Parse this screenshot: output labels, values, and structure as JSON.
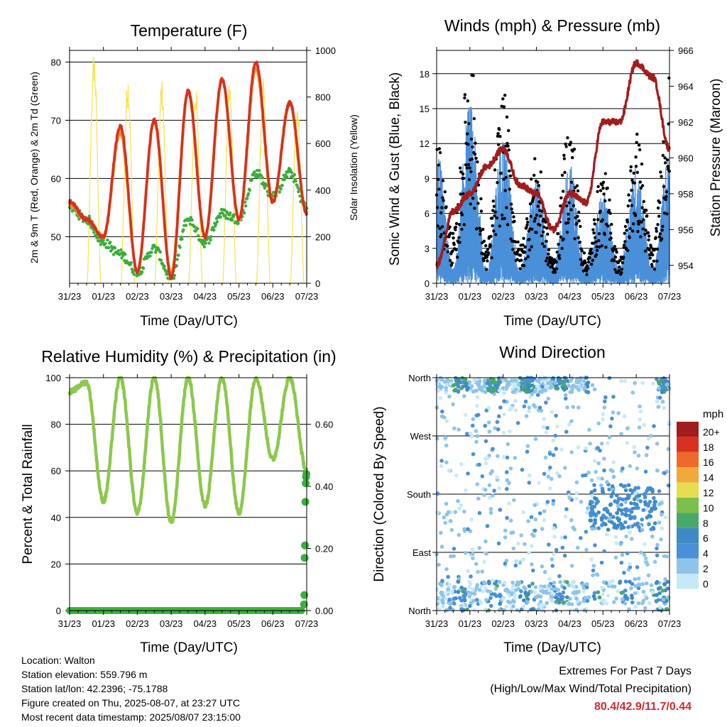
{
  "colors": {
    "red": "#d7301f",
    "orange": "#f28c28",
    "green": "#3aae3a",
    "yellow": "#f5e44c",
    "black": "#000000",
    "blue": "#4a90d9",
    "maroon": "#a11d1d",
    "rh": "#8cc84b",
    "precip": "#3cb03c",
    "extremes_values": "#d42a2a"
  },
  "x_ticks": [
    "31/23",
    "01/23",
    "02/23",
    "03/23",
    "04/23",
    "05/23",
    "06/23",
    "07/23"
  ],
  "panels": {
    "temperature": {
      "title": "Temperature (F)",
      "xlabel": "Time (Day/UTC)",
      "ylabel_left": "2m & 9m T (Red, Orange) & 2m Td (Green)",
      "ylabel_right": "Solar Insolation (Yellow)",
      "left_ticks": [
        "50",
        "60",
        "70",
        "80"
      ],
      "right_ticks": [
        "0",
        "200",
        "400",
        "600",
        "800",
        "1000"
      ]
    },
    "winds": {
      "title": "Winds (mph) & Pressure (mb)",
      "xlabel": "Time (Day/UTC)",
      "ylabel_left": "Sonic Wind & Gust (Blue, Black)",
      "ylabel_right": "Station Pressure (Maroon)",
      "left_ticks": [
        "0",
        "3",
        "6",
        "9",
        "12",
        "15",
        "18"
      ],
      "right_ticks": [
        "954",
        "956",
        "958",
        "960",
        "962",
        "964",
        "966"
      ]
    },
    "humidity": {
      "title": "Relative Humidity (%) & Precipitation (in)",
      "xlabel": "Time (Day/UTC)",
      "ylabel_left": "Percent & Total Rainfall",
      "left_ticks": [
        "0",
        "20",
        "40",
        "60",
        "80",
        "100"
      ],
      "right_ticks": [
        "0.00",
        "0.20",
        "0.40",
        "0.60"
      ]
    },
    "direction": {
      "title": "Wind Direction",
      "xlabel": "Time (Day/UTC)",
      "ylabel_left": "Direction (Colored By Speed)",
      "left_ticks": [
        "North",
        "East",
        "South",
        "West",
        "North"
      ],
      "legend_title": "mph",
      "legend_labels": [
        "0",
        "2",
        "4",
        "6",
        "8",
        "10",
        "12",
        "14",
        "16",
        "18",
        "20+"
      ],
      "legend_colors": [
        "#c6e9f7",
        "#8ec4ea",
        "#4a90d9",
        "#3e8ac4",
        "#48a868",
        "#7cbf4a",
        "#e8dc50",
        "#f2a93b",
        "#ee6a2a",
        "#d7301f",
        "#a11d1d"
      ]
    }
  },
  "info": {
    "location": "Location: Walton",
    "elevation": "Station elevation: 559.796 m",
    "latlon": "Station lat/lon: 42.2396; -75.1788",
    "created": "Figure created on Thu, 2025-08-07, at 23:27 UTC",
    "recent": "Most recent data timestamp: 2025/08/07 23:15:00"
  },
  "extremes": {
    "title": "Extremes For Past 7 Days",
    "subtitle": "(High/Low/Max Wind/Total Precipitation)",
    "values": "80.4/42.9/11.7/0.44"
  },
  "chart_data": [
    {
      "type": "line",
      "title": "Temperature (F)",
      "xlabel": "Time (Day/UTC)",
      "ylabel": "2m & 9m T (Red, Orange) & 2m Td (Green)",
      "y2label": "Solar Insolation (Yellow)",
      "x": [
        0,
        0.5,
        1,
        1.5,
        2,
        2.5,
        3,
        3.5,
        4,
        4.5,
        5,
        5.5,
        6,
        6.5,
        7
      ],
      "ylim": [
        42,
        82
      ],
      "y2lim": [
        0,
        1000
      ],
      "series": [
        {
          "name": "2m T (Red)",
          "values": [
            56,
            53,
            50,
            69,
            44,
            70,
            43,
            75,
            50,
            77,
            53,
            80,
            56,
            73,
            54
          ]
        },
        {
          "name": "9m T (Orange)",
          "values": [
            55.5,
            53,
            50,
            68,
            44,
            70,
            43.5,
            75,
            50,
            77,
            53,
            79,
            56,
            73,
            54
          ]
        },
        {
          "name": "2m Td (Green)",
          "values": [
            55,
            53,
            49,
            47,
            44,
            48,
            43,
            53,
            49,
            54,
            53,
            61,
            57,
            61,
            55
          ]
        },
        {
          "name": "Solar Insolation (Yellow)",
          "values": [
            0,
            0,
            1000,
            0,
            900,
            0,
            880,
            0,
            860,
            0,
            880,
            0,
            880,
            0,
            800
          ]
        }
      ]
    },
    {
      "type": "line",
      "title": "Winds (mph) & Pressure (mb)",
      "xlabel": "Time (Day/UTC)",
      "ylabel": "Sonic Wind & Gust (Blue, Black)",
      "y2label": "Station Pressure (Maroon)",
      "x": [
        0,
        0.5,
        1,
        1.5,
        2,
        2.5,
        3,
        3.5,
        4,
        4.5,
        5,
        5.5,
        6,
        6.5,
        7
      ],
      "ylim": [
        0,
        20
      ],
      "y2lim": [
        953,
        966
      ],
      "series": [
        {
          "name": "Gust (Black) daily peak",
          "values": [
            11,
            4,
            18,
            3,
            15,
            3,
            10,
            2,
            13,
            2,
            9,
            2,
            12,
            3,
            17
          ]
        },
        {
          "name": "Sonic Wind (Blue) daily peak",
          "values": [
            9,
            1,
            12,
            1,
            10,
            1,
            7,
            1,
            8,
            1,
            6,
            1,
            8,
            1,
            9
          ]
        },
        {
          "name": "Station Pressure (Maroon)",
          "values": [
            954,
            957,
            958,
            959.5,
            960.5,
            958.5,
            958,
            956,
            958,
            957.5,
            962,
            962,
            965.3,
            964.5,
            960.5
          ]
        }
      ]
    },
    {
      "type": "line",
      "title": "Relative Humidity (%) & Precipitation (in)",
      "xlabel": "Time (Day/UTC)",
      "ylabel": "Percent & Total Rainfall",
      "x": [
        0,
        0.5,
        1,
        1.5,
        2,
        2.5,
        3,
        3.5,
        4,
        4.5,
        5,
        5.5,
        6,
        6.5,
        7
      ],
      "ylim": [
        0,
        100
      ],
      "y2lim": [
        0,
        0.75
      ],
      "series": [
        {
          "name": "Relative Humidity",
          "values": [
            94,
            98,
            47,
            100,
            42,
            100,
            38,
            100,
            45,
            100,
            42,
            100,
            65,
            100,
            60
          ]
        },
        {
          "name": "Total Precipitation",
          "values": [
            0,
            0,
            0,
            0,
            0,
            0,
            0,
            0,
            0,
            0,
            0,
            0,
            0,
            0.02,
            0.44
          ]
        }
      ]
    },
    {
      "type": "scatter",
      "title": "Wind Direction",
      "xlabel": "Time (Day/UTC)",
      "ylabel": "Direction (Colored By Speed)",
      "ylim": [
        0,
        360
      ],
      "y_tick_labels": [
        "North",
        "East",
        "South",
        "West",
        "North"
      ],
      "legend": {
        "title": "mph",
        "labels": [
          "0",
          "2",
          "4",
          "6",
          "8",
          "10",
          "12",
          "14",
          "16",
          "18",
          "20+"
        ],
        "placement": "right"
      }
    }
  ]
}
